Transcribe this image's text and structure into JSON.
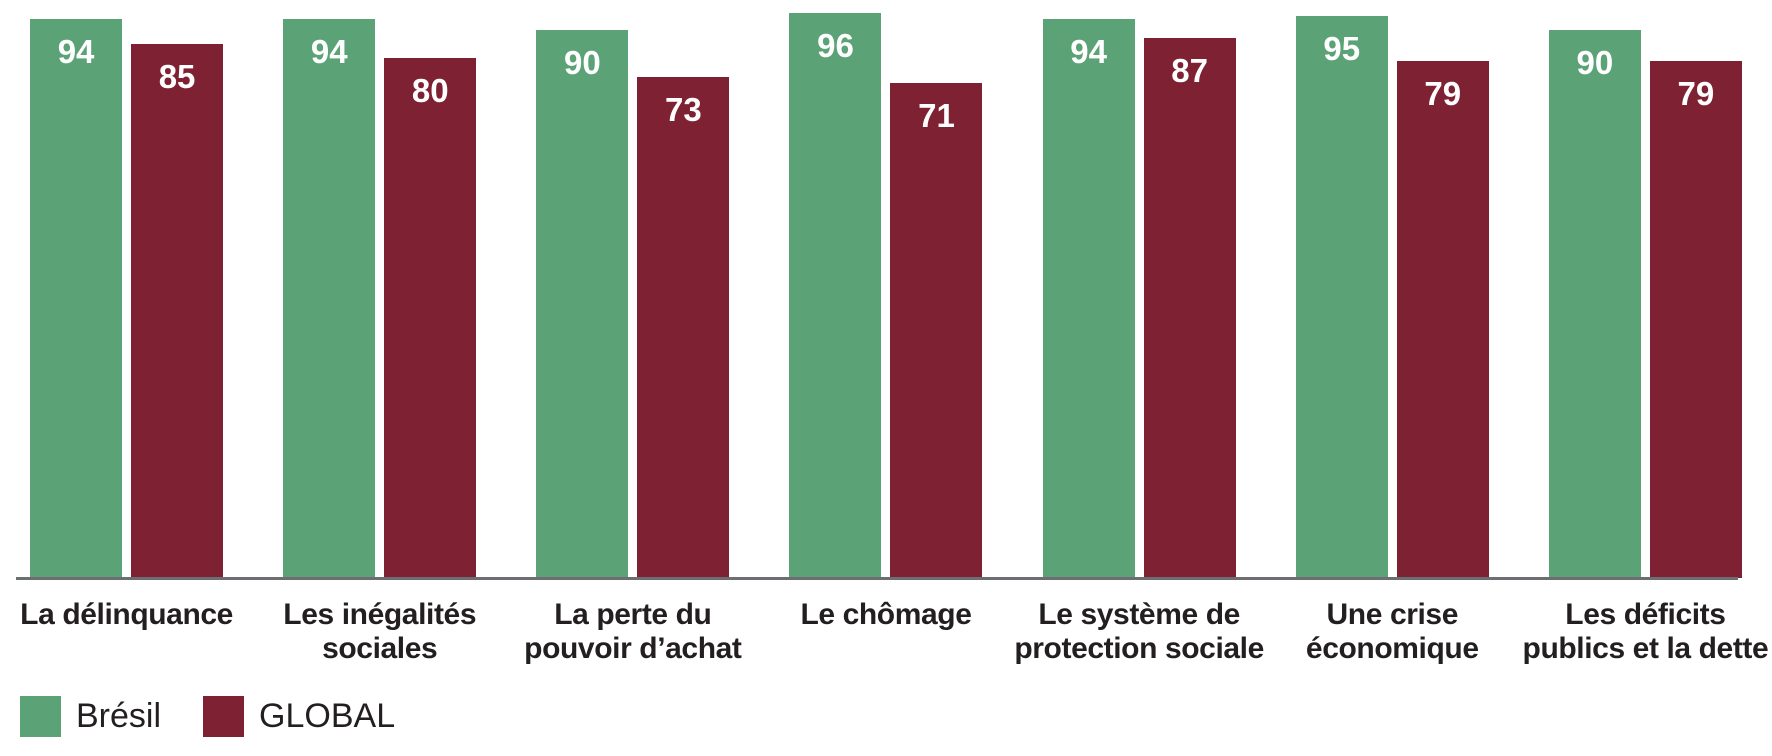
{
  "chart_data": {
    "type": "bar",
    "title": "",
    "categories": [
      "La délinquance",
      "Les inégalités\nsociales",
      "La perte du\npouvoir d’achat",
      "Le chômage",
      "Le système de\nprotection sociale",
      "Une crise\néconomique",
      "Les déficits\npublics et la dette"
    ],
    "series": [
      {
        "name": "Brésil",
        "color": "#5BA377",
        "values": [
          94,
          94,
          90,
          96,
          94,
          95,
          90
        ]
      },
      {
        "name": "GLOBAL",
        "color": "#7E2132",
        "values": [
          85,
          80,
          73,
          71,
          87,
          79,
          79
        ]
      }
    ],
    "value_labels_shown": true,
    "value_label_color": "#FFFFFF",
    "category_label_color": "#231F20",
    "baseline_color": "#6D6E71",
    "axis_hidden": true,
    "grid": false,
    "ylim": [
      0,
      100
    ],
    "legend_position": "bottom-left"
  }
}
